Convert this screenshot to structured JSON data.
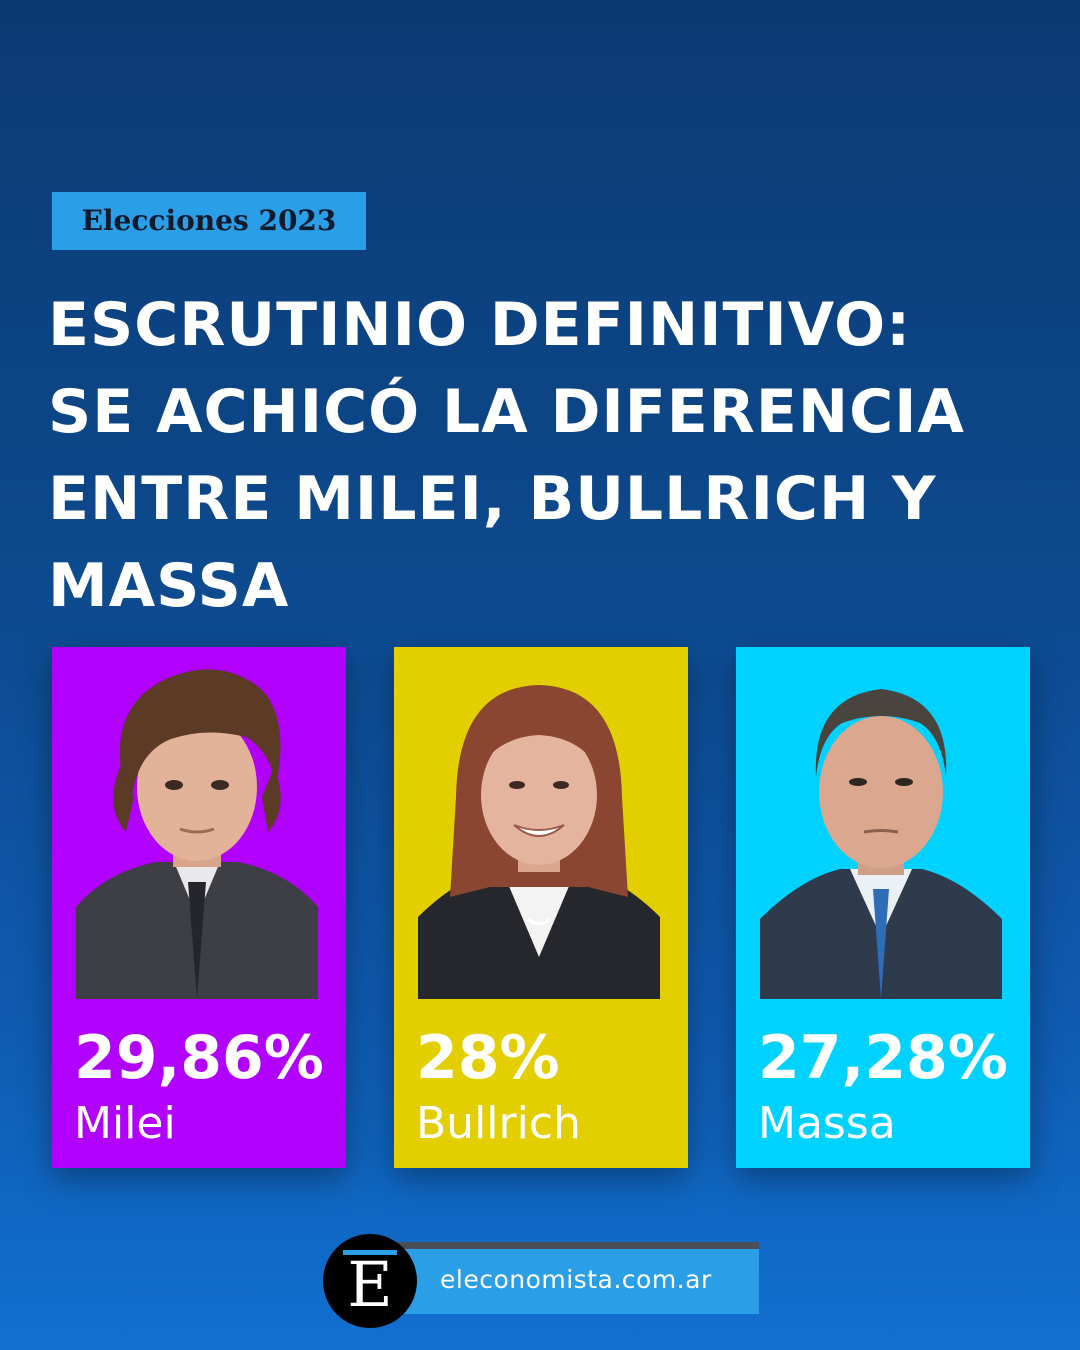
{
  "tag": "Elecciones 2023",
  "headline": [
    "ESCRUTINIO DEFINITIVO:",
    "SE ACHICÓ LA DIFERENCIA",
    "ENTRE MILEI, BULLRICH Y",
    "MASSA"
  ],
  "candidates": [
    {
      "percent": "29,86%",
      "name": "Milei",
      "color": "#b200ff"
    },
    {
      "percent": "28%",
      "name": "Bullrich",
      "color": "#e3cf00"
    },
    {
      "percent": "27,28%",
      "name": "Massa",
      "color": "#00d2ff"
    }
  ],
  "footer": {
    "logo_letter": "E",
    "url": "eleconomista.com.ar"
  }
}
